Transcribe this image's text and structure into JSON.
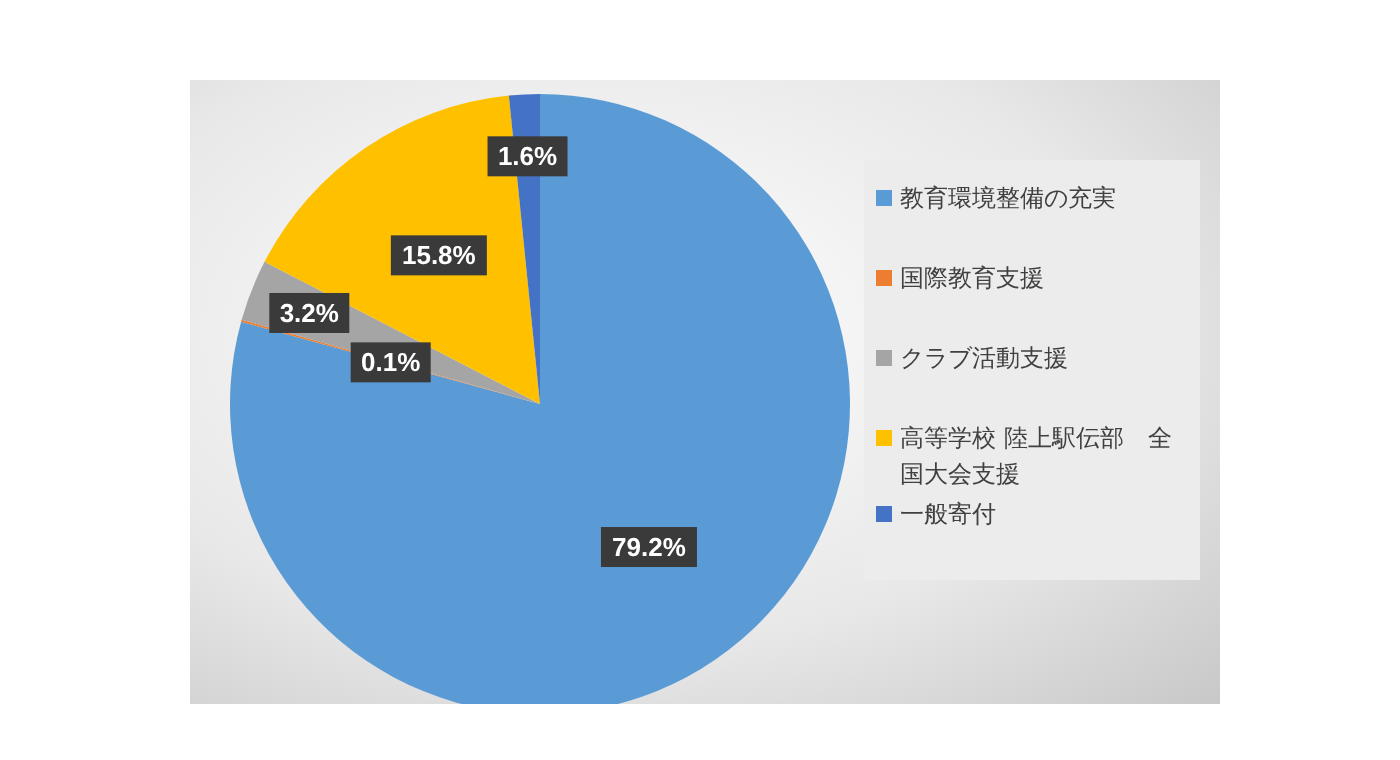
{
  "chart_data": {
    "type": "pie",
    "categories": [
      "教育環境整備の充実",
      "国際教育支援",
      "クラブ活動支援",
      "高等学校 陸上駅伝部　全国大会支援",
      "一般寄付"
    ],
    "values": [
      79.2,
      0.1,
      3.2,
      15.8,
      1.6
    ],
    "colors": [
      "#5b9bd5",
      "#ed7d31",
      "#a5a5a5",
      "#ffc000",
      "#4472c4"
    ],
    "value_labels": [
      "79.2%",
      "0.1%",
      "3.2%",
      "15.8%",
      "1.6%"
    ],
    "legend": "right"
  }
}
